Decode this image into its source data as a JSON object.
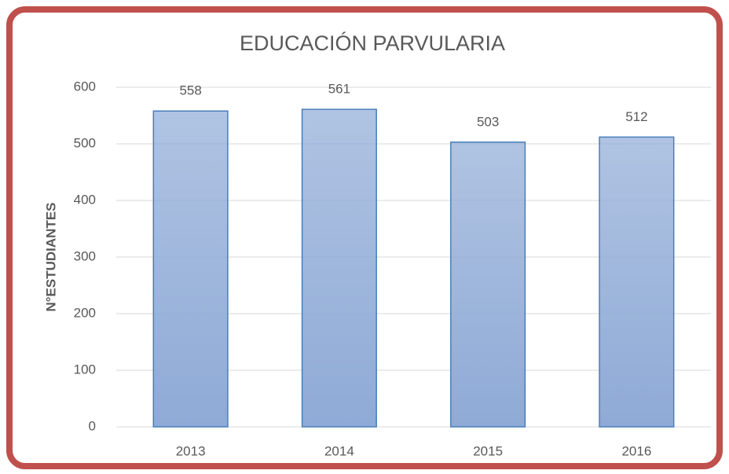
{
  "chart_data": {
    "type": "bar",
    "title": "EDUCACIÓN PARVULARIA",
    "ylabel": "N°ESTUDIANTES",
    "categories": [
      "2013",
      "2014",
      "2015",
      "2016"
    ],
    "values": [
      558,
      561,
      503,
      512
    ],
    "color": "#8eaad6",
    "edgecolor": "#4a7ebb",
    "ylim": [
      0,
      600
    ],
    "yticks": [
      0,
      100,
      200,
      300,
      400,
      500,
      600
    ],
    "grid": true
  }
}
